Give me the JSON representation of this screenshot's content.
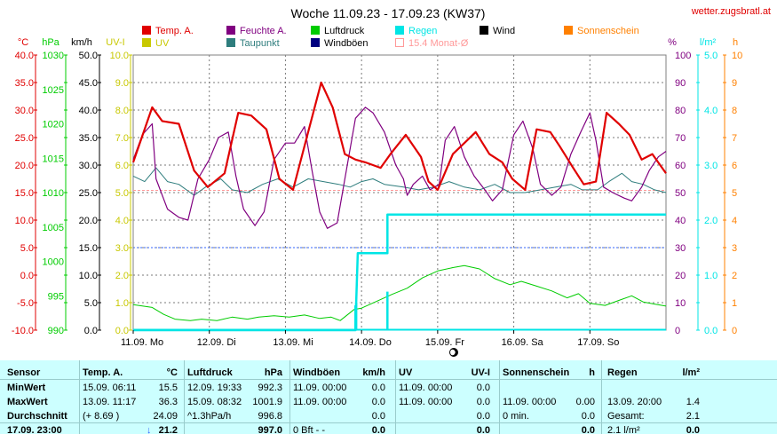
{
  "title": "Woche 11.09.23 - 17.09.23 (KW37)",
  "site": "wetter.zugsbratl.at",
  "colors": {
    "temp": "#e00000",
    "humidity": "#800080",
    "pressure": "#00cc00",
    "rain": "#00e5e5",
    "wind": "#000000",
    "sun": "#ff8000",
    "uv": "#c8c800",
    "dewpoint": "#2e7d7d",
    "gust": "#000080",
    "monthavg": "#ff9999",
    "grid": "#7a7a7a",
    "frame": "#808080",
    "table_bg": "#ccffff"
  },
  "left_axis_headers": [
    "°C",
    "hPa",
    "km/h",
    "UV-I"
  ],
  "right_axis_headers": [
    "%",
    "l/m²",
    "h"
  ],
  "axes": {
    "temp": [
      "40.0",
      "35.0",
      "30.0",
      "25.0",
      "20.0",
      "15.0",
      "10.0",
      "5.0",
      "0.0",
      "-5.0",
      "-10.0"
    ],
    "pressure": [
      "1030",
      "1025",
      "1020",
      "1015",
      "1010",
      "1005",
      "1000",
      "995",
      "990"
    ],
    "wind": [
      "50.0",
      "45.0",
      "40.0",
      "35.0",
      "30.0",
      "25.0",
      "20.0",
      "15.0",
      "10.0",
      "5.0",
      "0.0"
    ],
    "uv": [
      "10.0",
      "9.0",
      "8.0",
      "7.0",
      "6.0",
      "5.0",
      "4.0",
      "3.0",
      "2.0",
      "1.0",
      "0.0"
    ],
    "humidity": [
      "100",
      "90",
      "80",
      "70",
      "60",
      "50",
      "40",
      "30",
      "20",
      "10",
      "0"
    ],
    "rain": [
      "5.0",
      "4.0",
      "3.0",
      "2.0",
      "1.0",
      "0.0"
    ],
    "sun": [
      "10",
      "9",
      "8",
      "7",
      "6",
      "5",
      "4",
      "3",
      "2",
      "1",
      "0"
    ]
  },
  "legend": [
    {
      "label": "Temp. A.",
      "color": "#e00000",
      "style": "fill"
    },
    {
      "label": "Feuchte A.",
      "color": "#800080",
      "style": "fill"
    },
    {
      "label": "Luftdruck",
      "color": "#00cc00",
      "style": "fill"
    },
    {
      "label": "Regen",
      "color": "#00e5e5",
      "style": "fill"
    },
    {
      "label": "Wind",
      "color": "#000000",
      "style": "fill"
    },
    {
      "label": "Sonnenschein",
      "color": "#ff8000",
      "style": "fill"
    },
    {
      "label": "UV",
      "color": "#c8c800",
      "style": "fill"
    },
    {
      "label": "Taupunkt",
      "color": "#2e7d7d",
      "style": "fill"
    },
    {
      "label": "Windböen",
      "color": "#000080",
      "style": "fill"
    },
    {
      "label": "15.4 Monat-Ø",
      "color": "#ff9999",
      "style": "outline"
    }
  ],
  "chart_data": {
    "type": "line",
    "title": "Woche 11.09.23 - 17.09.23 (KW37)",
    "categories": [
      "11.09. Mo",
      "12.09. Di",
      "13.09. Mi",
      "14.09. Do",
      "15.09. Fr",
      "16.09. Sa",
      "17.09. So"
    ],
    "x_range_days": [
      0,
      7
    ],
    "grid": true,
    "legend_position": "top",
    "month_avg_temp": 15.4,
    "series": [
      {
        "name": "Temp. A.",
        "unit": "°C",
        "color": "#e00000",
        "axis": "temp",
        "points": [
          [
            0.0,
            20.5
          ],
          [
            0.25,
            30.5
          ],
          [
            0.38,
            28.0
          ],
          [
            0.6,
            27.5
          ],
          [
            0.8,
            19.0
          ],
          [
            0.98,
            16.0
          ],
          [
            1.2,
            18.5
          ],
          [
            1.38,
            29.5
          ],
          [
            1.55,
            29.0
          ],
          [
            1.75,
            26.5
          ],
          [
            1.92,
            17.5
          ],
          [
            2.1,
            15.5
          ],
          [
            2.28,
            25.0
          ],
          [
            2.47,
            35.0
          ],
          [
            2.62,
            30.5
          ],
          [
            2.78,
            22.0
          ],
          [
            2.92,
            21.0
          ],
          [
            3.05,
            20.5
          ],
          [
            3.25,
            19.5
          ],
          [
            3.38,
            22.0
          ],
          [
            3.58,
            25.5
          ],
          [
            3.78,
            21.5
          ],
          [
            3.88,
            17.0
          ],
          [
            4.0,
            15.5
          ],
          [
            4.2,
            22.0
          ],
          [
            4.35,
            24.0
          ],
          [
            4.5,
            26.0
          ],
          [
            4.68,
            22.0
          ],
          [
            4.85,
            20.5
          ],
          [
            4.98,
            17.5
          ],
          [
            5.15,
            15.5
          ],
          [
            5.3,
            26.5
          ],
          [
            5.48,
            26.0
          ],
          [
            5.6,
            23.5
          ],
          [
            5.78,
            19.5
          ],
          [
            5.92,
            16.5
          ],
          [
            6.08,
            17.0
          ],
          [
            6.22,
            29.5
          ],
          [
            6.38,
            27.5
          ],
          [
            6.52,
            25.5
          ],
          [
            6.68,
            21.0
          ],
          [
            6.82,
            22.0
          ],
          [
            7.0,
            18.5
          ]
        ]
      },
      {
        "name": "Feuchte A.",
        "unit": "%",
        "color": "#800080",
        "axis": "humidity",
        "points": [
          [
            0.0,
            62
          ],
          [
            0.12,
            71
          ],
          [
            0.25,
            75
          ],
          [
            0.3,
            55
          ],
          [
            0.45,
            44
          ],
          [
            0.6,
            41
          ],
          [
            0.72,
            40
          ],
          [
            0.85,
            55
          ],
          [
            1.0,
            62
          ],
          [
            1.12,
            70
          ],
          [
            1.25,
            72
          ],
          [
            1.35,
            56
          ],
          [
            1.45,
            44
          ],
          [
            1.6,
            38
          ],
          [
            1.72,
            43
          ],
          [
            1.85,
            62
          ],
          [
            2.0,
            68
          ],
          [
            2.12,
            68
          ],
          [
            2.25,
            74
          ],
          [
            2.35,
            58
          ],
          [
            2.45,
            43
          ],
          [
            2.55,
            37
          ],
          [
            2.68,
            39
          ],
          [
            2.8,
            58
          ],
          [
            2.92,
            77
          ],
          [
            3.05,
            81
          ],
          [
            3.15,
            79
          ],
          [
            3.3,
            72
          ],
          [
            3.45,
            60
          ],
          [
            3.55,
            55
          ],
          [
            3.6,
            49
          ],
          [
            3.68,
            53
          ],
          [
            3.8,
            56
          ],
          [
            3.9,
            51
          ],
          [
            4.02,
            53
          ],
          [
            4.1,
            69
          ],
          [
            4.22,
            74
          ],
          [
            4.35,
            63
          ],
          [
            4.48,
            56
          ],
          [
            4.62,
            51
          ],
          [
            4.72,
            47
          ],
          [
            4.85,
            51
          ],
          [
            5.0,
            71
          ],
          [
            5.12,
            76
          ],
          [
            5.25,
            66
          ],
          [
            5.35,
            53
          ],
          [
            5.5,
            49
          ],
          [
            5.62,
            52
          ],
          [
            5.75,
            64
          ],
          [
            5.88,
            72
          ],
          [
            6.0,
            79
          ],
          [
            6.08,
            69
          ],
          [
            6.18,
            52
          ],
          [
            6.3,
            50
          ],
          [
            6.45,
            48
          ],
          [
            6.55,
            47
          ],
          [
            6.68,
            52
          ],
          [
            6.78,
            58
          ],
          [
            6.9,
            63
          ],
          [
            7.0,
            65
          ]
        ]
      },
      {
        "name": "Luftdruck",
        "unit": "hPa",
        "color": "#00cc00",
        "axis": "pressure",
        "points": [
          [
            0.0,
            993.7
          ],
          [
            0.25,
            993.3
          ],
          [
            0.4,
            992.3
          ],
          [
            0.55,
            991.6
          ],
          [
            0.75,
            991.4
          ],
          [
            0.9,
            991.6
          ],
          [
            1.1,
            991.4
          ],
          [
            1.3,
            991.9
          ],
          [
            1.5,
            991.6
          ],
          [
            1.65,
            991.9
          ],
          [
            1.85,
            992.1
          ],
          [
            2.05,
            991.9
          ],
          [
            2.25,
            992.2
          ],
          [
            2.45,
            991.7
          ],
          [
            2.6,
            991.9
          ],
          [
            2.72,
            991.4
          ],
          [
            2.8,
            992.1
          ],
          [
            2.9,
            993.0
          ],
          [
            3.0,
            993.2
          ],
          [
            3.2,
            994.2
          ],
          [
            3.4,
            995.2
          ],
          [
            3.6,
            996.1
          ],
          [
            3.8,
            997.6
          ],
          [
            4.0,
            998.6
          ],
          [
            4.2,
            999.1
          ],
          [
            4.35,
            999.4
          ],
          [
            4.55,
            998.9
          ],
          [
            4.75,
            997.5
          ],
          [
            4.95,
            996.6
          ],
          [
            5.1,
            997.1
          ],
          [
            5.3,
            996.4
          ],
          [
            5.5,
            995.7
          ],
          [
            5.7,
            994.7
          ],
          [
            5.85,
            995.3
          ],
          [
            6.0,
            993.9
          ],
          [
            6.2,
            993.6
          ],
          [
            6.4,
            994.4
          ],
          [
            6.55,
            995.0
          ],
          [
            6.7,
            994.1
          ],
          [
            6.85,
            993.8
          ],
          [
            7.0,
            993.5
          ]
        ]
      },
      {
        "name": "Taupunkt",
        "unit": "°C",
        "color": "#2e7d7d",
        "axis": "temp",
        "points": [
          [
            0.0,
            18.0
          ],
          [
            0.15,
            17.0
          ],
          [
            0.3,
            19.5
          ],
          [
            0.45,
            17.0
          ],
          [
            0.6,
            16.5
          ],
          [
            0.8,
            14.5
          ],
          [
            0.95,
            16.0
          ],
          [
            1.15,
            17.5
          ],
          [
            1.3,
            15.5
          ],
          [
            1.5,
            15.0
          ],
          [
            1.7,
            16.5
          ],
          [
            1.9,
            17.5
          ],
          [
            2.1,
            16.0
          ],
          [
            2.3,
            17.5
          ],
          [
            2.5,
            17.0
          ],
          [
            2.7,
            16.5
          ],
          [
            2.85,
            16.0
          ],
          [
            3.0,
            17.0
          ],
          [
            3.15,
            17.5
          ],
          [
            3.3,
            16.5
          ],
          [
            3.55,
            16.0
          ],
          [
            3.75,
            15.5
          ],
          [
            3.95,
            16.0
          ],
          [
            4.15,
            17.0
          ],
          [
            4.35,
            16.0
          ],
          [
            4.55,
            15.5
          ],
          [
            4.75,
            16.5
          ],
          [
            4.95,
            15.0
          ],
          [
            5.15,
            15.0
          ],
          [
            5.35,
            15.5
          ],
          [
            5.55,
            16.0
          ],
          [
            5.75,
            16.5
          ],
          [
            5.9,
            15.5
          ],
          [
            6.1,
            15.5
          ],
          [
            6.25,
            17.0
          ],
          [
            6.42,
            18.5
          ],
          [
            6.55,
            17.0
          ],
          [
            6.7,
            16.5
          ],
          [
            6.85,
            15.5
          ],
          [
            7.0,
            15.0
          ]
        ]
      },
      {
        "name": "Regen",
        "unit": "l/m²",
        "color": "#00e5e5",
        "axis": "rain",
        "points": [
          [
            0.0,
            0.0
          ],
          [
            2.92,
            0.0
          ],
          [
            2.92,
            0.1
          ],
          [
            2.95,
            1.4
          ],
          [
            3.34,
            1.4
          ],
          [
            3.34,
            2.1
          ],
          [
            7.0,
            2.1
          ]
        ]
      },
      {
        "name": "Regen-Rate",
        "unit": "l/m²",
        "color": "#00e5e5",
        "axis": "rain",
        "bars": [
          [
            2.92,
            0.45
          ],
          [
            2.93,
            0.5
          ],
          [
            3.34,
            0.7
          ]
        ]
      }
    ]
  },
  "x_labels": [
    "11.09. Mo",
    "12.09. Di",
    "13.09. Mi",
    "14.09. Do",
    "15.09. Fr",
    "16.09. Sa",
    "17.09. So"
  ],
  "table": {
    "row_labels": [
      "Sensor",
      "MinWert",
      "MaxWert",
      "Durchschnitt",
      "17.09. 23:00"
    ],
    "temp": {
      "header": "Temp. A.",
      "unit": "°C",
      "rows": [
        [
          "15.09.  06:11",
          "15.5"
        ],
        [
          "13.09.  11:17",
          "36.3"
        ],
        [
          "(+ 8.69 )",
          "24.09"
        ],
        [
          "",
          "21.2"
        ]
      ],
      "trend": "↓"
    },
    "pressure": {
      "header": "Luftdruck",
      "unit": "hPa",
      "rows": [
        [
          "12.09.  19:33",
          "992.3"
        ],
        [
          "15.09.  08:32",
          "1001.9"
        ],
        [
          "^1.3hPa/h",
          "996.8"
        ],
        [
          "",
          "997.0"
        ]
      ]
    },
    "gust": {
      "header": "Windböen",
      "unit": "km/h",
      "rows": [
        [
          "11.09.  00:00",
          "0.0"
        ],
        [
          "11.09.  00:00",
          "0.0"
        ],
        [
          "",
          "0.0"
        ],
        [
          "0 Bft - -",
          "0.0"
        ]
      ]
    },
    "uv": {
      "header": "UV",
      "unit": "UV-I",
      "rows": [
        [
          "11.09.  00:00",
          "0.0"
        ],
        [
          "11.09.  00:00",
          "0.0"
        ],
        [
          "",
          "0.0"
        ],
        [
          "",
          "0.0"
        ]
      ]
    },
    "sun": {
      "header": "Sonnenschein",
      "unit": "h",
      "rows": [
        [
          "",
          ""
        ],
        [
          "11.09.  00:00",
          "0.00"
        ],
        [
          "0 min.",
          "0.0"
        ],
        [
          "",
          "0.0"
        ]
      ]
    },
    "rain": {
      "header": "Regen",
      "unit": "l/m²",
      "rows": [
        [
          "",
          ""
        ],
        [
          "13.09.  20:00",
          "1.4"
        ],
        [
          "Gesamt:",
          "2.1"
        ],
        [
          "2.1 l/m²",
          "0.0"
        ]
      ]
    }
  }
}
